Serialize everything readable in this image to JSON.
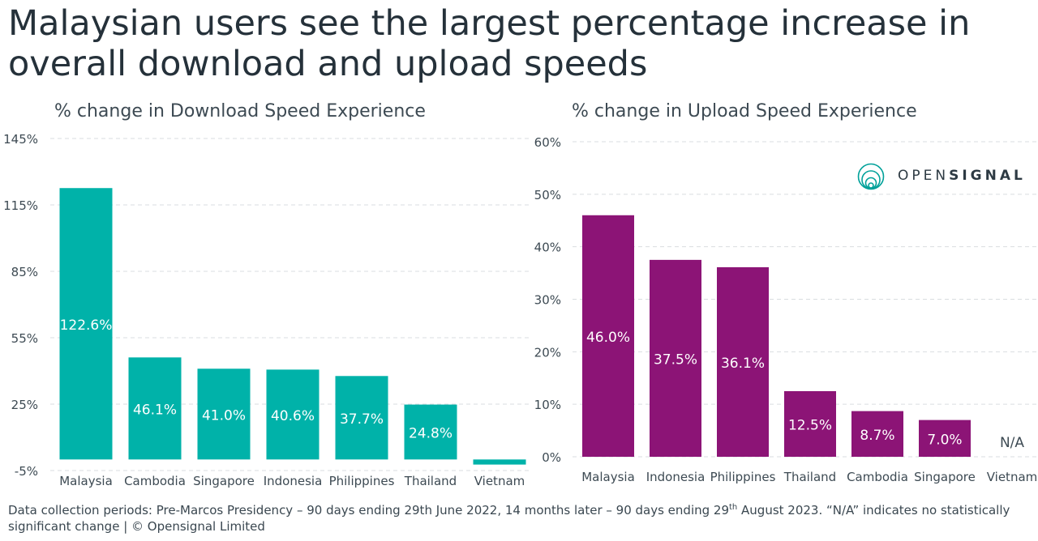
{
  "title": "Malaysian users see the largest percentage increase in overall download and upload speeds",
  "chart_data": [
    {
      "type": "bar",
      "title": "% change in Download Speed Experience",
      "categories": [
        "Malaysia",
        "Cambodia",
        "Singapore",
        "Indonesia",
        "Philippines",
        "Thailand",
        "Vietnam"
      ],
      "values": [
        122.6,
        46.1,
        41.0,
        40.6,
        37.7,
        24.8,
        -2.3
      ],
      "data_labels": [
        "122.6%",
        "46.1%",
        "41.0%",
        "40.6%",
        "37.7%",
        "24.8%",
        ""
      ],
      "yticks": [
        "145%",
        "115%",
        "85%",
        "55%",
        "25%",
        "-5%"
      ],
      "ytick_values": [
        145,
        115,
        85,
        55,
        25,
        -5
      ],
      "ylim": [
        -5,
        145
      ],
      "color": "#00b2a9",
      "grid": true
    },
    {
      "type": "bar",
      "title": "% change in Upload Speed Experience",
      "categories": [
        "Malaysia",
        "Indonesia",
        "Philippines",
        "Thailand",
        "Cambodia",
        "Singapore",
        "Vietnam"
      ],
      "values": [
        46.0,
        37.5,
        36.1,
        12.5,
        8.7,
        7.0,
        null
      ],
      "data_labels": [
        "46.0%",
        "37.5%",
        "36.1%",
        "12.5%",
        "8.7%",
        "7.0%",
        "N/A"
      ],
      "yticks": [
        "60%",
        "50%",
        "40%",
        "30%",
        "20%",
        "10%",
        "0%"
      ],
      "ytick_values": [
        60,
        50,
        40,
        30,
        20,
        10,
        0
      ],
      "ylim": [
        0,
        60
      ],
      "color": "#8c1476",
      "grid": true
    }
  ],
  "logo": {
    "prefix": "OPEN",
    "suffix": "SIGNAL",
    "icon": "opensignal-rings-icon",
    "color": "#00a19a"
  },
  "footnote": {
    "part1": "Data collection periods: Pre-Marcos Presidency – 90 days ending 29th June 2022, 14 months later – 90 days ending 29",
    "sup": "th",
    "part2": " August 2023. “N/A” indicates no statistically significant change | © Opensignal Limited"
  }
}
